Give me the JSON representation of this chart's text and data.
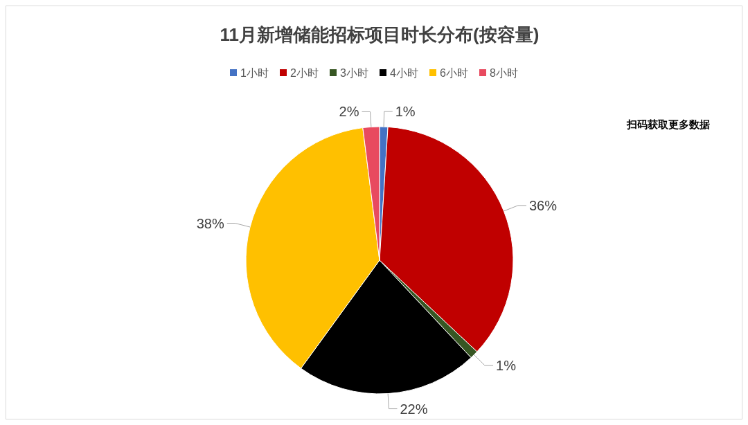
{
  "chart_data": {
    "type": "pie",
    "title": "11月新增储能招标项目时长分布(按容量)",
    "categories": [
      "1小时",
      "2小时",
      "3小时",
      "4小时",
      "6小时",
      "8小时"
    ],
    "values": [
      1,
      36,
      1,
      22,
      38,
      2
    ],
    "value_labels": [
      "1%",
      "36%",
      "1%",
      "22%",
      "38%",
      "2%"
    ],
    "colors": [
      "#4472c4",
      "#c00000",
      "#375623",
      "#000000",
      "#ffc000",
      "#e84a5f"
    ],
    "legend": "top",
    "annotations": [
      "扫码获取更多数据"
    ]
  }
}
